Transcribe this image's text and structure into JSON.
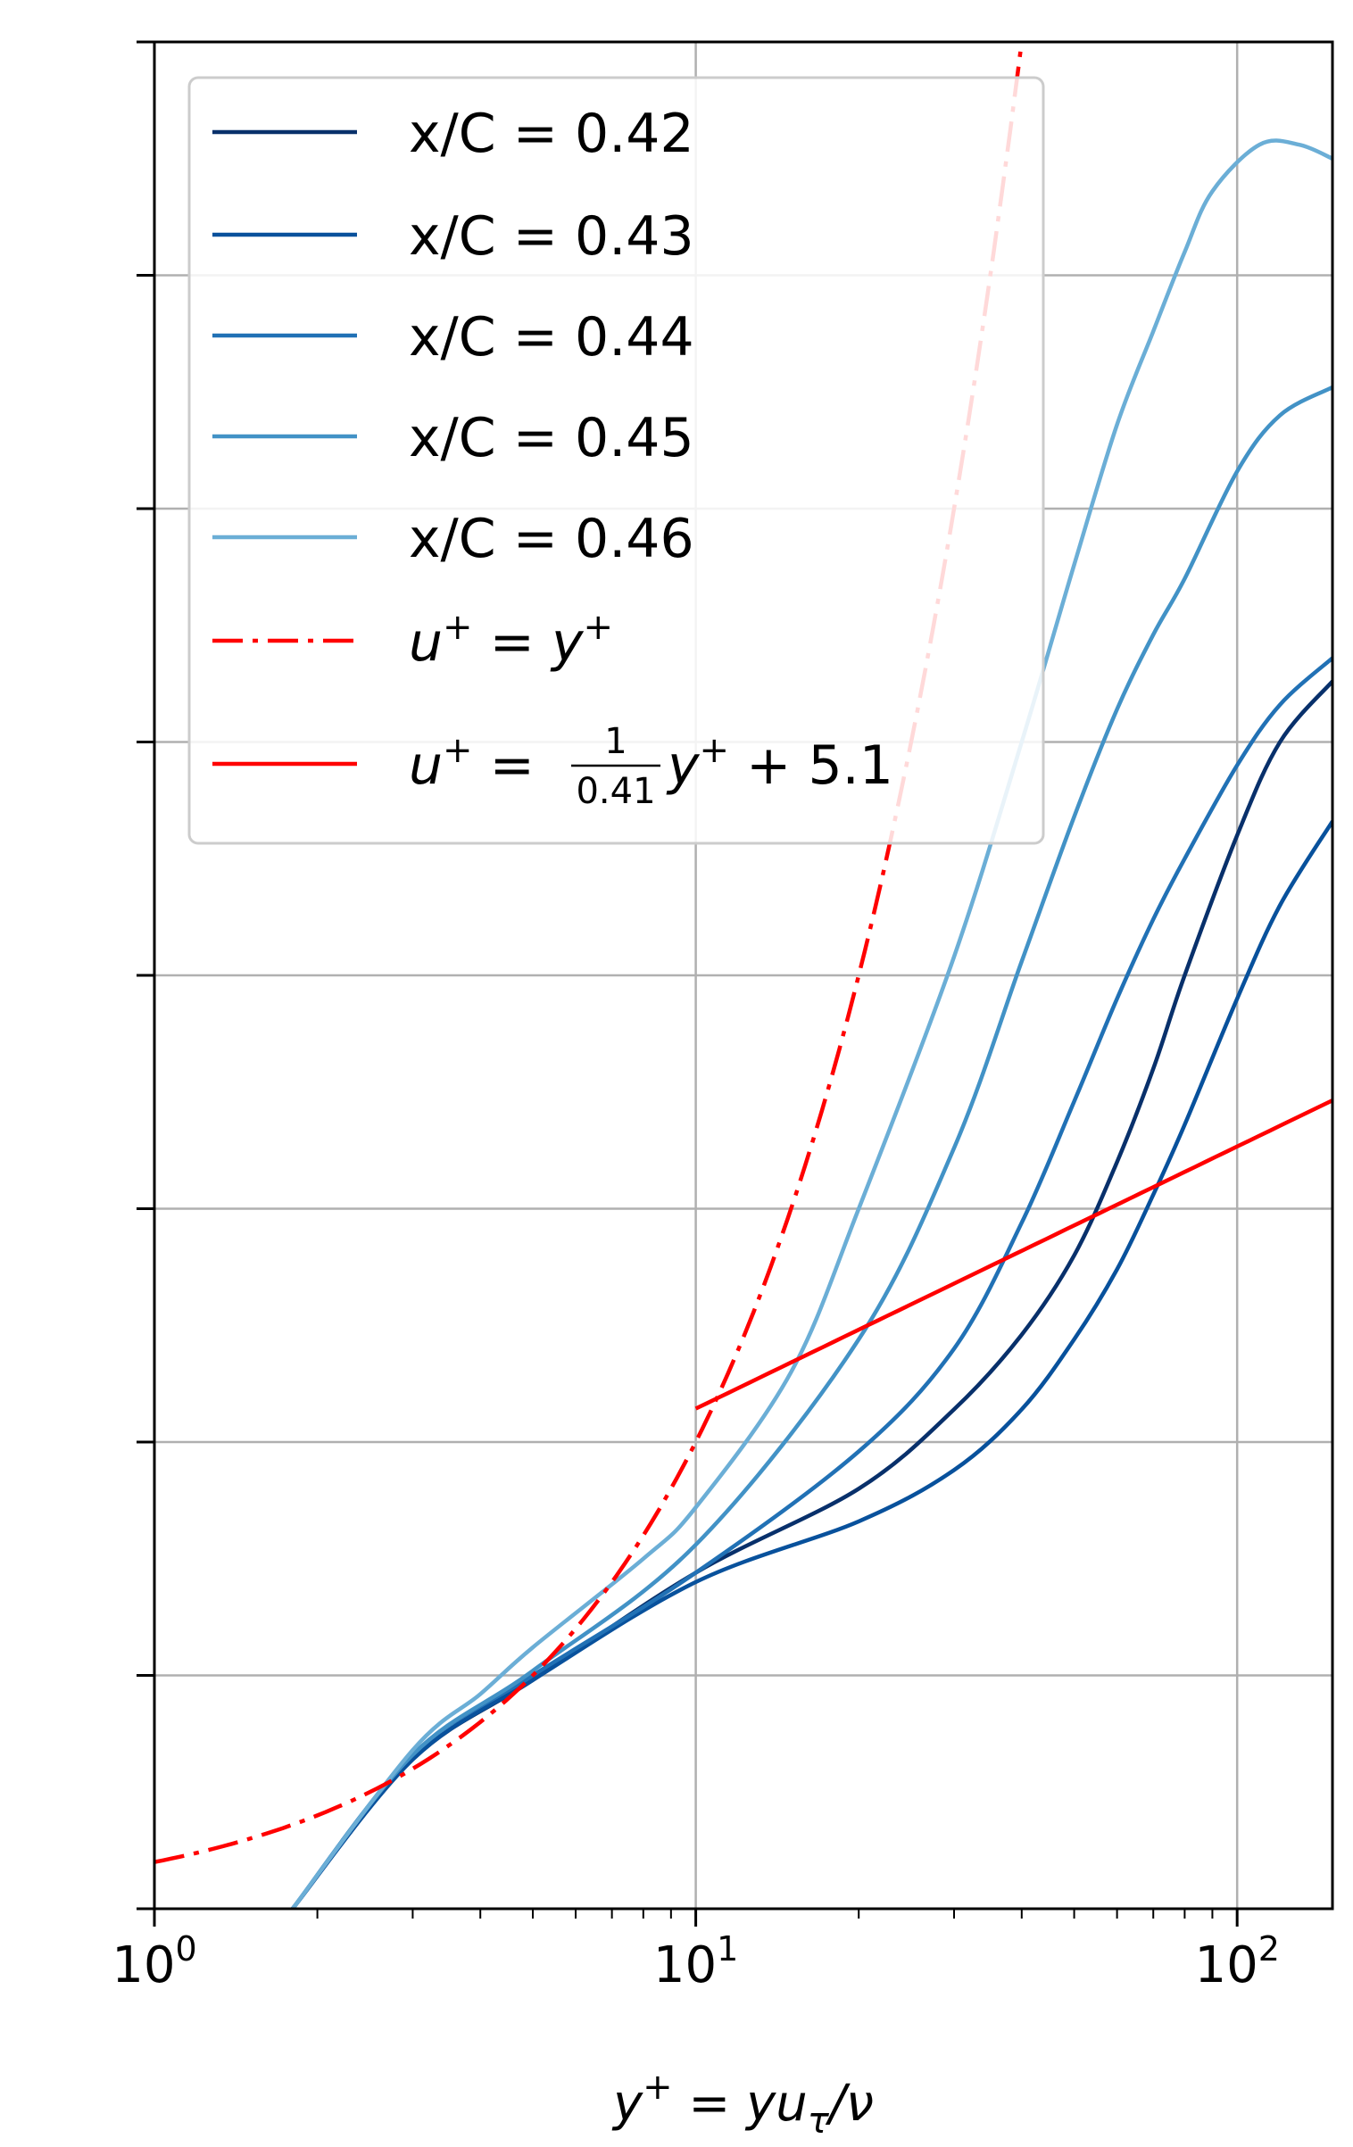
{
  "chart_data": {
    "type": "line",
    "title": "",
    "xlabel": "y⁺ = yu_τ/ν",
    "xlabel_parts": {
      "lhs": "y",
      "sup": "+",
      "eq": " = ",
      "rhs": "yu",
      "sub": "τ",
      "tail": "/ν"
    },
    "ylabel": "",
    "xscale": "log",
    "xlim": [
      1,
      150
    ],
    "ylim": [
      0,
      40
    ],
    "x_ticks": [
      {
        "value": 1,
        "base": "10",
        "exp": "0"
      },
      {
        "value": 10,
        "base": "10",
        "exp": "1"
      },
      {
        "value": 100,
        "base": "10",
        "exp": "2"
      }
    ],
    "y_ticks": [
      0,
      5,
      10,
      15,
      20,
      25,
      30,
      35,
      40
    ],
    "y_tick_labels_shown": false,
    "grid": true,
    "legend_position": "upper-left",
    "series": [
      {
        "name": "x/C = 0.42",
        "color": "#08306b",
        "style": "solid",
        "x": [
          1.8,
          3,
          5,
          10,
          20,
          30,
          40,
          50,
          60,
          70,
          80,
          100,
          120,
          150
        ],
        "y": [
          0,
          3.2,
          4.9,
          7.2,
          9.0,
          10.7,
          12.3,
          14.0,
          16.0,
          18.0,
          20.0,
          23.0,
          25.0,
          26.3
        ]
      },
      {
        "name": "x/C = 0.43",
        "color": "#08519c",
        "style": "solid",
        "x": [
          1.8,
          3,
          5,
          10,
          20,
          30,
          40,
          50,
          60,
          70,
          80,
          100,
          120,
          150
        ],
        "y": [
          0,
          3.2,
          4.9,
          7.0,
          8.3,
          9.4,
          10.7,
          12.2,
          13.7,
          15.3,
          16.8,
          19.5,
          21.5,
          23.3
        ]
      },
      {
        "name": "x/C = 0.44",
        "color": "#2171b5",
        "style": "solid",
        "x": [
          1.8,
          3,
          5,
          10,
          20,
          30,
          40,
          50,
          60,
          70,
          80,
          100,
          120,
          150
        ],
        "y": [
          0,
          3.3,
          5.0,
          7.2,
          9.8,
          12.0,
          14.7,
          17.3,
          19.5,
          21.2,
          22.5,
          24.5,
          25.8,
          26.8
        ]
      },
      {
        "name": "x/C = 0.45",
        "color": "#4292c6",
        "style": "solid",
        "x": [
          1.8,
          3,
          5,
          10,
          20,
          30,
          40,
          50,
          60,
          70,
          80,
          100,
          120,
          150
        ],
        "y": [
          0,
          3.3,
          5.1,
          7.8,
          12.2,
          16.3,
          20.3,
          23.4,
          25.7,
          27.3,
          28.5,
          30.8,
          32.0,
          32.6
        ]
      },
      {
        "name": "x/C = 0.46",
        "color": "#6baed6",
        "style": "solid",
        "x": [
          1.8,
          3,
          4,
          5,
          8,
          10,
          15,
          20,
          30,
          40,
          50,
          60,
          70,
          80,
          90,
          110,
          130,
          150
        ],
        "y": [
          0,
          3.4,
          4.6,
          5.6,
          7.5,
          8.6,
          11.5,
          15.0,
          20.4,
          25.0,
          28.8,
          31.8,
          33.8,
          35.5,
          36.8,
          37.8,
          37.8,
          37.5
        ]
      },
      {
        "name": "u⁺ = y⁺",
        "color": "#ff0000",
        "style": "dashdot",
        "label_parts": {
          "u": "u",
          "sup": "+",
          "eq": " = ",
          "y": "y",
          "sup2": "+"
        },
        "function": "linear",
        "x_range": [
          1,
          79
        ]
      },
      {
        "name": "u⁺ = (1/0.41) ln y⁺ + 5.1",
        "color": "#ff0000",
        "style": "solid",
        "label_parts": {
          "u": "u",
          "sup": "+",
          "eq": " = ",
          "num": "1",
          "den": "0.41",
          "y": "y",
          "sup2": "+",
          "tail": " + 5.1"
        },
        "function": "loglaw",
        "kappa": 0.41,
        "B": 5.1,
        "x_range": [
          10,
          150
        ]
      }
    ]
  }
}
